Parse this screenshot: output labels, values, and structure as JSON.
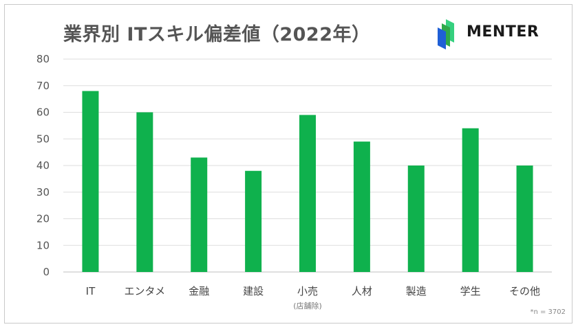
{
  "title": "業界別 ITスキル偏差値（2022年）",
  "brand": {
    "name": "MENTER",
    "colors": [
      "#1f5fd6",
      "#2ea84a",
      "#35d07f"
    ]
  },
  "note": "*n = 3702",
  "bar_color": "#0fb14d",
  "chart_data": {
    "type": "bar",
    "title": "業界別 ITスキル偏差値（2022年）",
    "categories": [
      "IT",
      "エンタメ",
      "金融",
      "建設",
      "小売",
      "人材",
      "製造",
      "学生",
      "その他"
    ],
    "category_sublabels": [
      "",
      "",
      "",
      "",
      "(店舗除)",
      "",
      "",
      "",
      ""
    ],
    "values": [
      68,
      60,
      43,
      38,
      59,
      49,
      40,
      54,
      40
    ],
    "yticks": [
      0,
      10,
      20,
      30,
      40,
      50,
      60,
      70,
      80
    ],
    "ylim": [
      0,
      80
    ],
    "grid": true
  }
}
